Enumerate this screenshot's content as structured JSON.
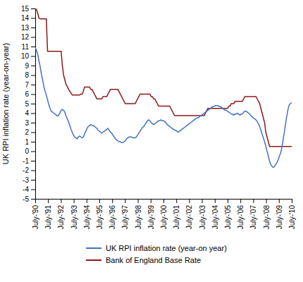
{
  "chart_data": {
    "type": "line",
    "ylabel": "UK RPI inflation rate (year-on-year)",
    "xlim": [
      0,
      20
    ],
    "xticks": [
      {
        "value": 0,
        "label": "July-'90"
      },
      {
        "value": 1,
        "label": "July-'91"
      },
      {
        "value": 2,
        "label": "July-'92"
      },
      {
        "value": 3,
        "label": "July-'93"
      },
      {
        "value": 4,
        "label": "July-'94"
      },
      {
        "value": 5,
        "label": "July-'95"
      },
      {
        "value": 6,
        "label": "July-'96"
      },
      {
        "value": 7,
        "label": "July-'97"
      },
      {
        "value": 8,
        "label": "July-'98"
      },
      {
        "value": 9,
        "label": "July-'99"
      },
      {
        "value": 10,
        "label": "July-'00"
      },
      {
        "value": 11,
        "label": "July-'01"
      },
      {
        "value": 12,
        "label": "July-'02"
      },
      {
        "value": 13,
        "label": "July-'03"
      },
      {
        "value": 14,
        "label": "July-'04"
      },
      {
        "value": 15,
        "label": "July-'05"
      },
      {
        "value": 16,
        "label": "July-'06"
      },
      {
        "value": 17,
        "label": "July-'07"
      },
      {
        "value": 18,
        "label": "July-'08"
      },
      {
        "value": 19,
        "label": "July-'09"
      },
      {
        "value": 20,
        "label": "July-'10"
      }
    ],
    "ylim": [
      -5,
      15
    ],
    "yticks": [
      -5,
      -4,
      -3,
      -2,
      -1,
      0,
      1,
      2,
      3,
      4,
      5,
      6,
      7,
      8,
      9,
      10,
      11,
      12,
      13,
      14,
      15
    ],
    "grid": false,
    "legend": "bottom",
    "series": [
      {
        "name": "UK RPI inflation rate (year-on year)",
        "color": "#4472C4",
        "values": [
          10.9,
          10.6,
          10.2,
          9.5,
          8.9,
          8.1,
          7.5,
          6.8,
          6.3,
          5.9,
          5.4,
          4.9,
          4.5,
          4.2,
          4.1,
          4.0,
          3.9,
          3.8,
          3.7,
          3.8,
          4.0,
          4.3,
          4.4,
          4.3,
          4.1,
          3.7,
          3.4,
          3.1,
          2.7,
          2.3,
          2.0,
          1.7,
          1.5,
          1.4,
          1.3,
          1.5,
          1.6,
          1.5,
          1.4,
          1.5,
          1.8,
          2.1,
          2.4,
          2.6,
          2.7,
          2.8,
          2.7,
          2.7,
          2.6,
          2.5,
          2.4,
          2.2,
          2.1,
          2.0,
          1.9,
          2.0,
          2.1,
          2.2,
          2.3,
          2.4,
          2.2,
          2.0,
          1.9,
          1.7,
          1.5,
          1.3,
          1.2,
          1.1,
          1.0,
          1.0,
          0.9,
          0.9,
          1.0,
          1.1,
          1.3,
          1.4,
          1.5,
          1.5,
          1.5,
          1.4,
          1.4,
          1.4,
          1.5,
          1.7,
          1.9,
          2.1,
          2.3,
          2.5,
          2.6,
          2.8,
          3.0,
          3.2,
          3.3,
          3.2,
          3.0,
          2.9,
          2.8,
          2.9,
          3.0,
          3.1,
          3.2,
          3.2,
          3.3,
          3.2,
          3.2,
          3.1,
          3.0,
          2.8,
          2.7,
          2.6,
          2.5,
          2.4,
          2.3,
          2.2,
          2.2,
          2.1,
          2.0,
          2.1,
          2.2,
          2.3,
          2.4,
          2.5,
          2.6,
          2.7,
          2.8,
          2.9,
          3.0,
          3.1,
          3.2,
          3.3,
          3.4,
          3.5,
          3.5,
          3.6,
          3.7,
          3.8,
          3.9,
          4.0,
          4.1,
          4.2,
          4.3,
          4.4,
          4.5,
          4.6,
          4.7,
          4.7,
          4.8,
          4.8,
          4.8,
          4.7,
          4.7,
          4.6,
          4.5,
          4.4,
          4.3,
          4.3,
          4.2,
          4.1,
          4.0,
          3.9,
          3.9,
          3.8,
          3.9,
          3.9,
          4.0,
          3.9,
          3.8,
          3.9,
          3.9,
          4.1,
          4.2,
          4.2,
          4.1,
          4.0,
          3.9,
          3.7,
          3.6,
          3.5,
          3.4,
          3.3,
          3.1,
          2.9,
          2.6,
          2.2,
          1.8,
          1.4,
          1.0,
          0.5,
          0.0,
          -0.5,
          -1.0,
          -1.4,
          -1.6,
          -1.7,
          -1.6,
          -1.4,
          -1.2,
          -0.9,
          -0.5,
          -0.2,
          0.4,
          1.2,
          2.0,
          2.9,
          3.7,
          4.4,
          4.9,
          5.0,
          5.1
        ]
      },
      {
        "name": "Bank of England Base Rate",
        "color": "#8B1A1A",
        "values": [
          14.9,
          14.9,
          14.5,
          14.0,
          13.9,
          13.9,
          13.9,
          13.9,
          13.9,
          13.9,
          10.5,
          10.5,
          10.5,
          10.5,
          10.5,
          10.5,
          10.5,
          10.5,
          10.5,
          10.5,
          10.5,
          10.5,
          9.0,
          8.0,
          7.5,
          7.0,
          6.8,
          6.5,
          6.3,
          6.1,
          5.9,
          5.9,
          5.9,
          5.9,
          5.9,
          5.9,
          5.9,
          6.0,
          6.0,
          6.3,
          6.75,
          6.75,
          6.75,
          6.75,
          6.75,
          6.5,
          6.5,
          6.25,
          6.0,
          5.75,
          5.5,
          5.5,
          5.5,
          5.5,
          5.5,
          5.75,
          5.75,
          5.75,
          5.75,
          6.0,
          6.25,
          6.5,
          6.5,
          6.5,
          6.5,
          6.5,
          6.5,
          6.5,
          6.25,
          6.0,
          5.75,
          5.5,
          5.25,
          5.0,
          5.0,
          5.0,
          5.0,
          5.0,
          5.0,
          5.0,
          5.0,
          5.0,
          5.25,
          5.5,
          5.75,
          6.0,
          6.0,
          6.0,
          6.0,
          6.0,
          6.0,
          6.0,
          6.0,
          6.0,
          5.75,
          5.75,
          5.5,
          5.5,
          5.25,
          5.0,
          4.75,
          4.75,
          4.75,
          4.75,
          4.75,
          4.75,
          4.75,
          4.75,
          4.75,
          4.75,
          4.5,
          4.25,
          4.0,
          3.75,
          3.75,
          3.75,
          3.75,
          3.75,
          3.75,
          3.75,
          3.75,
          3.75,
          3.75,
          3.75,
          3.75,
          3.75,
          3.75,
          3.75,
          3.75,
          3.75,
          3.75,
          3.75,
          3.75,
          3.75,
          3.75,
          3.75,
          3.75,
          3.75,
          4.0,
          4.25,
          4.5,
          4.5,
          4.5,
          4.5,
          4.5,
          4.5,
          4.5,
          4.5,
          4.5,
          4.5,
          4.5,
          4.5,
          4.5,
          4.5,
          4.5,
          4.5,
          4.5,
          4.75,
          4.75,
          5.0,
          5.0,
          5.0,
          5.25,
          5.25,
          5.25,
          5.25,
          5.25,
          5.25,
          5.25,
          5.5,
          5.75,
          5.75,
          5.75,
          5.75,
          5.75,
          5.75,
          5.75,
          5.75,
          5.75,
          5.75,
          5.5,
          5.25,
          5.0,
          4.5,
          4.0,
          3.5,
          3.0,
          2.0,
          1.5,
          1.0,
          0.5,
          0.5,
          0.5,
          0.5,
          0.5,
          0.5,
          0.5,
          0.5,
          0.5,
          0.5,
          0.5,
          0.5,
          0.5,
          0.5,
          0.5,
          0.5,
          0.5,
          0.5,
          0.5
        ]
      }
    ]
  }
}
